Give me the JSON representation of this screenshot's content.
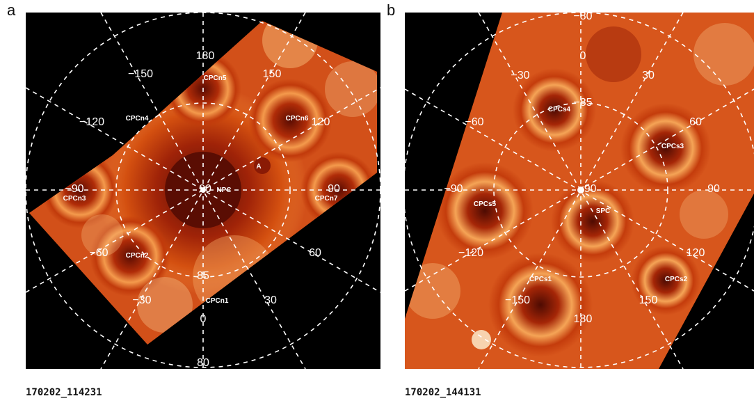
{
  "panels": [
    {
      "letter": "a",
      "caption": "170202_114231",
      "longitudes": [
        "180",
        "−150",
        "150",
        "−120",
        "120",
        "−90",
        "90",
        "−60",
        "60",
        "−30",
        "30",
        "0"
      ],
      "latitudes": [
        "85",
        "80"
      ],
      "pole_label": "90",
      "features": [
        "NPC",
        "CPCn1",
        "CPCn2",
        "CPCn3",
        "CPCn4",
        "CPCn5",
        "CPCn6",
        "CPCn7",
        "A"
      ]
    },
    {
      "letter": "b",
      "caption": "170202_144131",
      "longitudes": [
        "0",
        "−30",
        "30",
        "−60",
        "60",
        "−90",
        "90",
        "−120",
        "120",
        "−150",
        "150",
        "180"
      ],
      "latitudes": [
        "−85",
        "−80"
      ],
      "pole_label": "−90",
      "features": [
        "SPC",
        "CPCs1",
        "CPCs2",
        "CPCs3",
        "CPCs4",
        "CPCs5"
      ]
    }
  ],
  "colors": {
    "grid": "#ffffff",
    "background": "#000000",
    "map_dark": "#7a1404",
    "map_mid": "#c83a0c",
    "map_light": "#f3a456"
  }
}
